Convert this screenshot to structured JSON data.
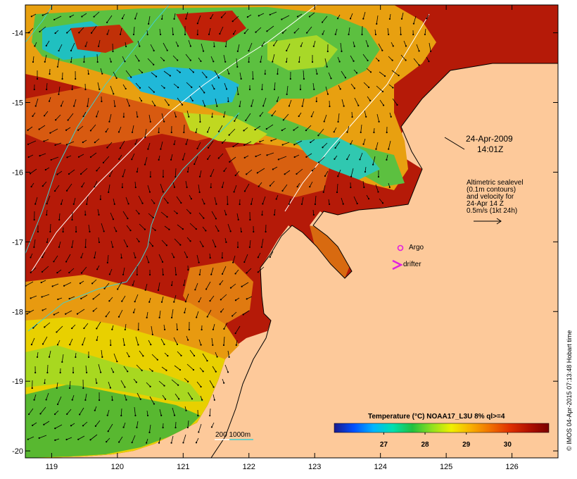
{
  "map": {
    "lon_ticks": [
      "119",
      "120",
      "121",
      "122",
      "123",
      "124",
      "125",
      "126"
    ],
    "lat_ticks": [
      "-14",
      "-15",
      "-16",
      "-17",
      "-18",
      "-19",
      "-20"
    ],
    "lon_range": [
      118.6,
      126.7
    ],
    "lat_range": [
      -13.6,
      -20.1
    ]
  },
  "annotations": {
    "date": "24-Apr-2009",
    "time": "14:01Z",
    "altimetry_lines": [
      "Altimetric sealevel",
      "(0.1m contours)",
      "and velocity for",
      "24-Apr 14 Z",
      "0.5m/s (1kt 24h)"
    ],
    "argo_label": "Argo",
    "drifter_label": "drifter",
    "depth_contours_label": "200  1000m"
  },
  "colorbar": {
    "title": "Temperature (°C) NOAA17_L3U 8% ql>=4",
    "ticks": [
      "27",
      "28",
      "29",
      "30"
    ],
    "range": [
      25.8,
      31.0
    ],
    "colors": [
      "#1a1a8c",
      "#0050ff",
      "#00b4ff",
      "#00e0b0",
      "#20c040",
      "#90e020",
      "#f0f000",
      "#f8b000",
      "#f07000",
      "#e03000",
      "#b01000",
      "#7a0000"
    ]
  },
  "credit": "© IMOS 04-Apr-2015 07:13:48 Hobart time",
  "colors": {
    "land": "#fdc99a",
    "argo": "#e020e0",
    "drifter": "#e020e0",
    "contour_200": "#ffffff",
    "contour_1000": "#40d0d0"
  }
}
